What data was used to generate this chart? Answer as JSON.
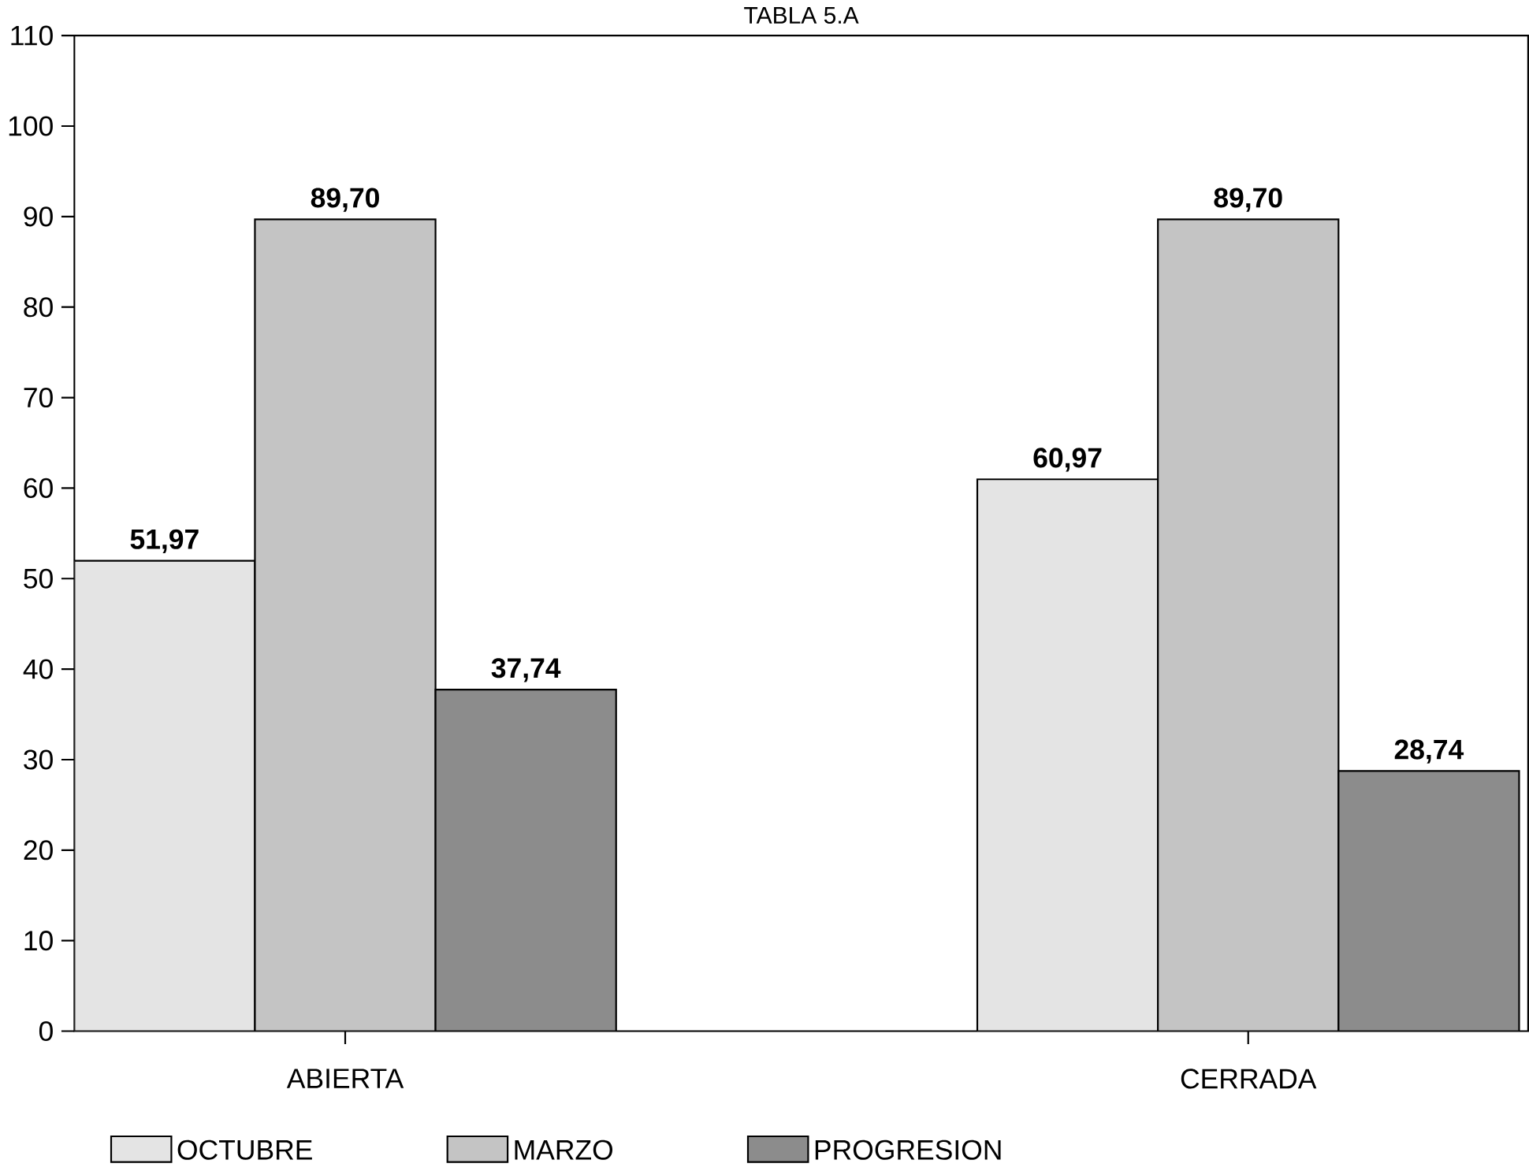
{
  "chart_data": {
    "type": "bar",
    "title": "TABLA 5.A",
    "categories": [
      "ABIERTA",
      "CERRADA"
    ],
    "series": [
      {
        "name": "OCTUBRE",
        "color": "#e4e4e4",
        "values": [
          51.97,
          60.97
        ],
        "value_labels": [
          "51,97",
          "60,97"
        ]
      },
      {
        "name": "MARZO",
        "color": "#c4c4c4",
        "values": [
          89.7,
          89.7
        ],
        "value_labels": [
          "89,70",
          "89,70"
        ]
      },
      {
        "name": "PROGRESION",
        "color": "#8c8c8c",
        "values": [
          37.74,
          28.74
        ],
        "value_labels": [
          "37,74",
          "28,74"
        ]
      }
    ],
    "ylim": [
      0,
      110
    ],
    "yticks": [
      0,
      10,
      20,
      30,
      40,
      50,
      60,
      70,
      80,
      90,
      100,
      110
    ],
    "grid": false,
    "legend": "bottom"
  }
}
